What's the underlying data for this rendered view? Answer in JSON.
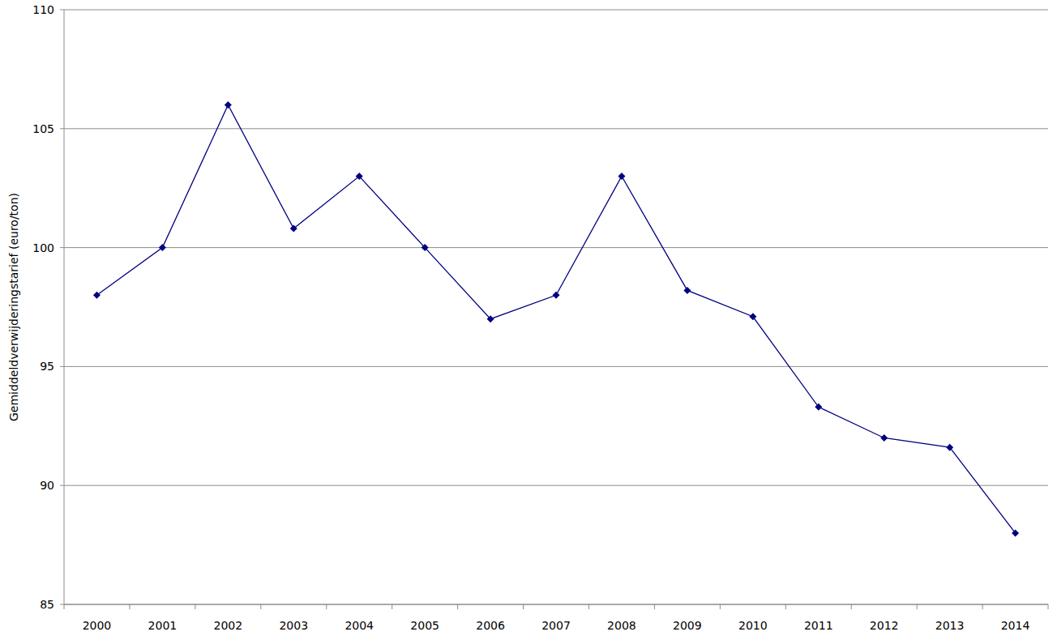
{
  "chart_data": {
    "type": "line",
    "ylabel": "Gemiddeldverwijderingstarief (euro/ton)",
    "categories": [
      "2000",
      "2001",
      "2002",
      "2003",
      "2004",
      "2005",
      "2006",
      "2007",
      "2008",
      "2009",
      "2010",
      "2011",
      "2012",
      "2013",
      "2014"
    ],
    "values": [
      98.0,
      100.0,
      106.0,
      100.8,
      103.0,
      100.0,
      97.0,
      98.0,
      103.0,
      98.2,
      97.1,
      93.3,
      92.0,
      91.6,
      88.0
    ],
    "color": "#000080",
    "marker": "diamond",
    "ylim": [
      85,
      110
    ],
    "yticks": [
      85,
      90,
      95,
      100,
      105,
      110
    ],
    "grid": true
  }
}
